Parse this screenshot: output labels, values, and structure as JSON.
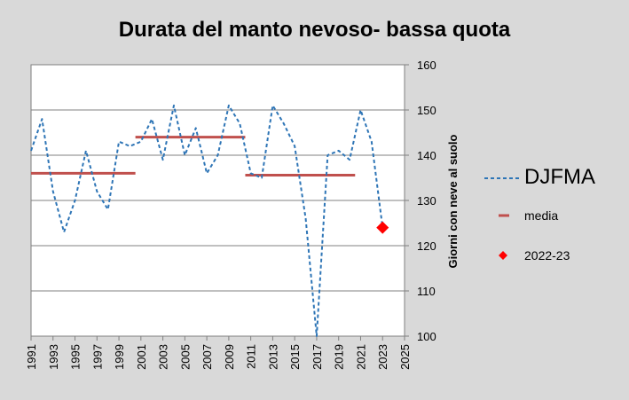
{
  "chart_data": {
    "type": "line",
    "title": "Durata del manto nevoso- bassa quota",
    "ylabel": "Giorni con neve al suolo",
    "xlabel": "",
    "ylim": [
      100,
      160
    ],
    "xlim": [
      1991,
      2025
    ],
    "y_ticks": [
      100,
      110,
      120,
      130,
      140,
      150,
      160
    ],
    "x_ticks": [
      1991,
      1993,
      1995,
      1997,
      1999,
      2001,
      2003,
      2005,
      2007,
      2009,
      2011,
      2013,
      2015,
      2017,
      2019,
      2021,
      2023,
      2025
    ],
    "grid": "horizontal",
    "legend_position": "right",
    "series": [
      {
        "name": "DJFMA",
        "style": "dashed",
        "color": "#2e75b6",
        "x": [
          1991,
          1992,
          1993,
          1994,
          1995,
          1996,
          1997,
          1998,
          1999,
          2000,
          2001,
          2002,
          2003,
          2004,
          2005,
          2006,
          2007,
          2008,
          2009,
          2010,
          2011,
          2012,
          2013,
          2014,
          2015,
          2016,
          2017,
          2018,
          2019,
          2020,
          2021,
          2022,
          2023
        ],
        "y": [
          141,
          148,
          132,
          123,
          130,
          141,
          132,
          128,
          143,
          142,
          143,
          148,
          139,
          151,
          140,
          146,
          136,
          140,
          151,
          147,
          136,
          135,
          151,
          147,
          142,
          126,
          100,
          140,
          141,
          139,
          150,
          143,
          124
        ]
      },
      {
        "name": "media",
        "style": "segments",
        "color": "#c0504d",
        "segments": [
          {
            "x0": 1991,
            "x1": 2000.5,
            "y": 136
          },
          {
            "x0": 2000.5,
            "x1": 2010.5,
            "y": 144
          },
          {
            "x0": 2010.5,
            "x1": 2020.5,
            "y": 135.6
          }
        ]
      },
      {
        "name": "2022-23",
        "style": "marker",
        "color": "#ff0000",
        "x": [
          2023
        ],
        "y": [
          124
        ]
      }
    ]
  },
  "legend": {
    "djfma": "DJFMA",
    "media": "media",
    "season": "2022-23"
  }
}
